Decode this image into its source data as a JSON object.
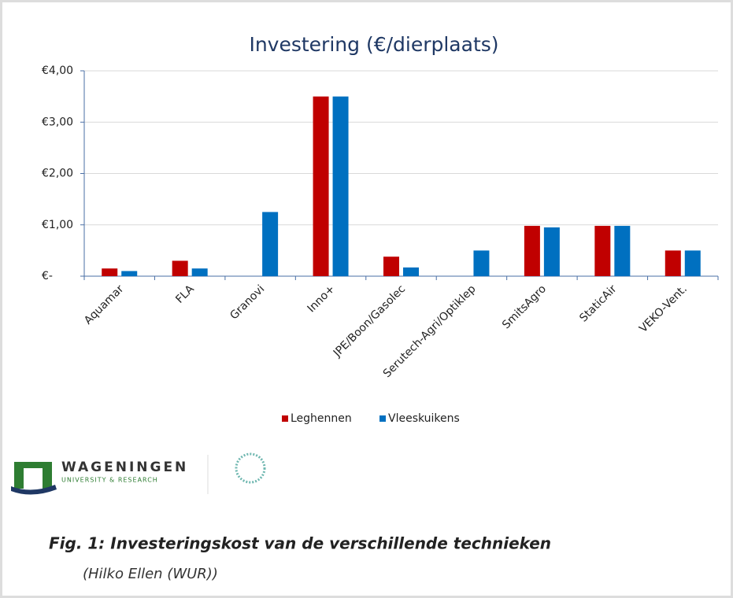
{
  "chart_data": {
    "type": "bar",
    "title": "Investering (€/dierplaats)",
    "categories": [
      "Aquamar",
      "FLA",
      "Granovi",
      "Inno+",
      "JPE/Boon/Gasolec",
      "Serutech-Agri/Optiklep",
      "SmitsAgro",
      "StaticAir",
      "VEKO-Vent."
    ],
    "series": [
      {
        "name": "Leghennen",
        "color": "#c00000",
        "values": [
          0.15,
          0.3,
          null,
          3.5,
          0.38,
          null,
          0.98,
          0.98,
          0.5
        ]
      },
      {
        "name": "Vleeskuikens",
        "color": "#0070c0",
        "values": [
          0.1,
          0.15,
          1.25,
          3.5,
          0.17,
          0.5,
          0.95,
          0.98,
          0.5
        ]
      }
    ],
    "ylim": [
      0,
      4
    ],
    "yticks": [
      {
        "value": 0,
        "label": "€-"
      },
      {
        "value": 1,
        "label": "€1,00"
      },
      {
        "value": 2,
        "label": "€2,00"
      },
      {
        "value": 3,
        "label": "€3,00"
      },
      {
        "value": 4,
        "label": "€4,00"
      }
    ],
    "grid": true,
    "legend": "bottom"
  },
  "logo": {
    "name": "WAGENINGEN",
    "subtitle": "UNIVERSITY & RESEARCH"
  },
  "caption": {
    "title": "Fig. 1: Investeringskost van de verschillende technieken",
    "credit": "(Hilko Ellen (WUR))"
  }
}
